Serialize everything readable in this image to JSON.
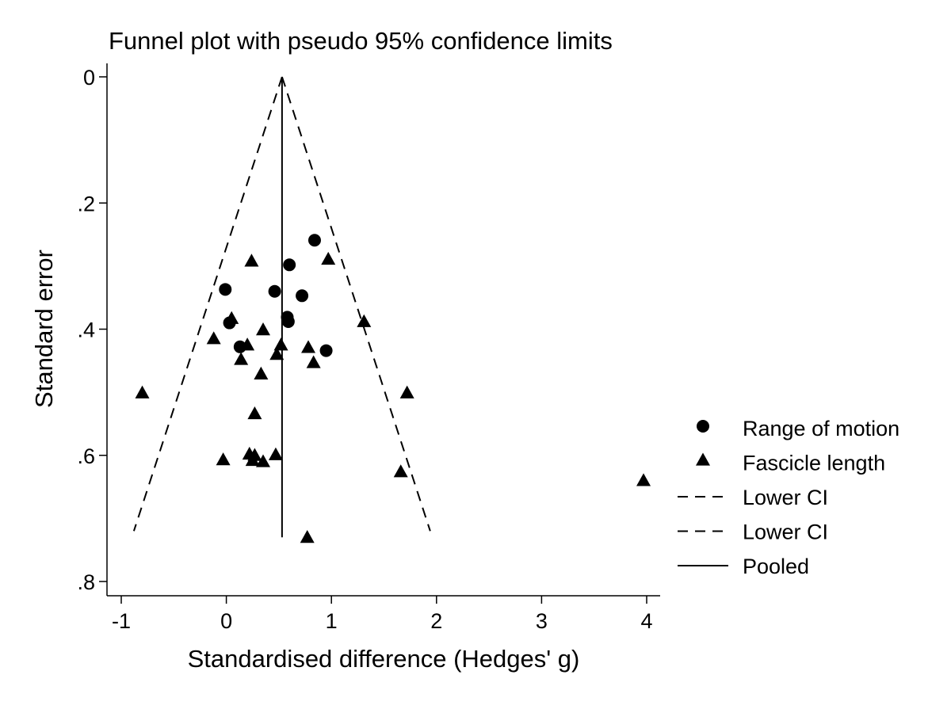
{
  "chart_data": {
    "type": "scatter",
    "title": "Funnel plot with pseudo 95% confidence limits",
    "xlabel": "Standardised difference (Hedges' g)",
    "ylabel": "Standard error",
    "xlim": [
      -1.1,
      4.1
    ],
    "ylim": [
      0,
      0.825
    ],
    "y_reversed": true,
    "x_ticks": [
      -1,
      0,
      1,
      2,
      3,
      4
    ],
    "x_tick_labels": [
      "-1",
      "0",
      "1",
      "2",
      "3",
      "4"
    ],
    "y_ticks": [
      0,
      0.2,
      0.4,
      0.6,
      0.8
    ],
    "y_tick_labels": [
      "0",
      ".2",
      ".4",
      ".6",
      ".8"
    ],
    "grid": false,
    "legend_position": "right",
    "pooled": 0.53,
    "se_max": 0.72,
    "series": [
      {
        "name": "Range of motion",
        "marker": "circle",
        "points": [
          {
            "x": 0.84,
            "y": 0.259
          },
          {
            "x": 0.6,
            "y": 0.298
          },
          {
            "x": -0.01,
            "y": 0.337
          },
          {
            "x": 0.46,
            "y": 0.34
          },
          {
            "x": 0.72,
            "y": 0.347
          },
          {
            "x": 0.58,
            "y": 0.381
          },
          {
            "x": 0.59,
            "y": 0.388
          },
          {
            "x": 0.03,
            "y": 0.39
          },
          {
            "x": 0.13,
            "y": 0.428
          },
          {
            "x": 0.95,
            "y": 0.434
          }
        ]
      },
      {
        "name": "Fascicle length",
        "marker": "triangle",
        "points": [
          {
            "x": 0.24,
            "y": 0.293
          },
          {
            "x": 0.97,
            "y": 0.29
          },
          {
            "x": 0.05,
            "y": 0.384
          },
          {
            "x": 1.31,
            "y": 0.389
          },
          {
            "x": 0.35,
            "y": 0.402
          },
          {
            "x": -0.12,
            "y": 0.416
          },
          {
            "x": 0.2,
            "y": 0.426
          },
          {
            "x": 0.52,
            "y": 0.426
          },
          {
            "x": 0.78,
            "y": 0.43
          },
          {
            "x": 0.48,
            "y": 0.441
          },
          {
            "x": 0.14,
            "y": 0.449
          },
          {
            "x": 0.83,
            "y": 0.454
          },
          {
            "x": 0.33,
            "y": 0.472
          },
          {
            "x": -0.8,
            "y": 0.502
          },
          {
            "x": 1.72,
            "y": 0.502
          },
          {
            "x": 0.27,
            "y": 0.535
          },
          {
            "x": 0.22,
            "y": 0.599
          },
          {
            "x": 0.27,
            "y": 0.601
          },
          {
            "x": 0.47,
            "y": 0.6
          },
          {
            "x": -0.03,
            "y": 0.608
          },
          {
            "x": 0.25,
            "y": 0.609
          },
          {
            "x": 0.35,
            "y": 0.611
          },
          {
            "x": 1.66,
            "y": 0.627
          },
          {
            "x": 3.97,
            "y": 0.641
          },
          {
            "x": 0.77,
            "y": 0.731
          }
        ]
      },
      {
        "name": "Lower CI",
        "line": "dashed",
        "points": [
          {
            "x": 0.53,
            "y": 0
          },
          {
            "x": -0.88,
            "y": 0.72
          }
        ]
      },
      {
        "name": "Lower CI",
        "line": "dashed",
        "points": [
          {
            "x": 0.53,
            "y": 0
          },
          {
            "x": 1.94,
            "y": 0.72
          }
        ]
      },
      {
        "name": "Pooled",
        "line": "solid",
        "points": [
          {
            "x": 0.53,
            "y": 0
          },
          {
            "x": 0.53,
            "y": 0.73
          }
        ]
      }
    ]
  }
}
